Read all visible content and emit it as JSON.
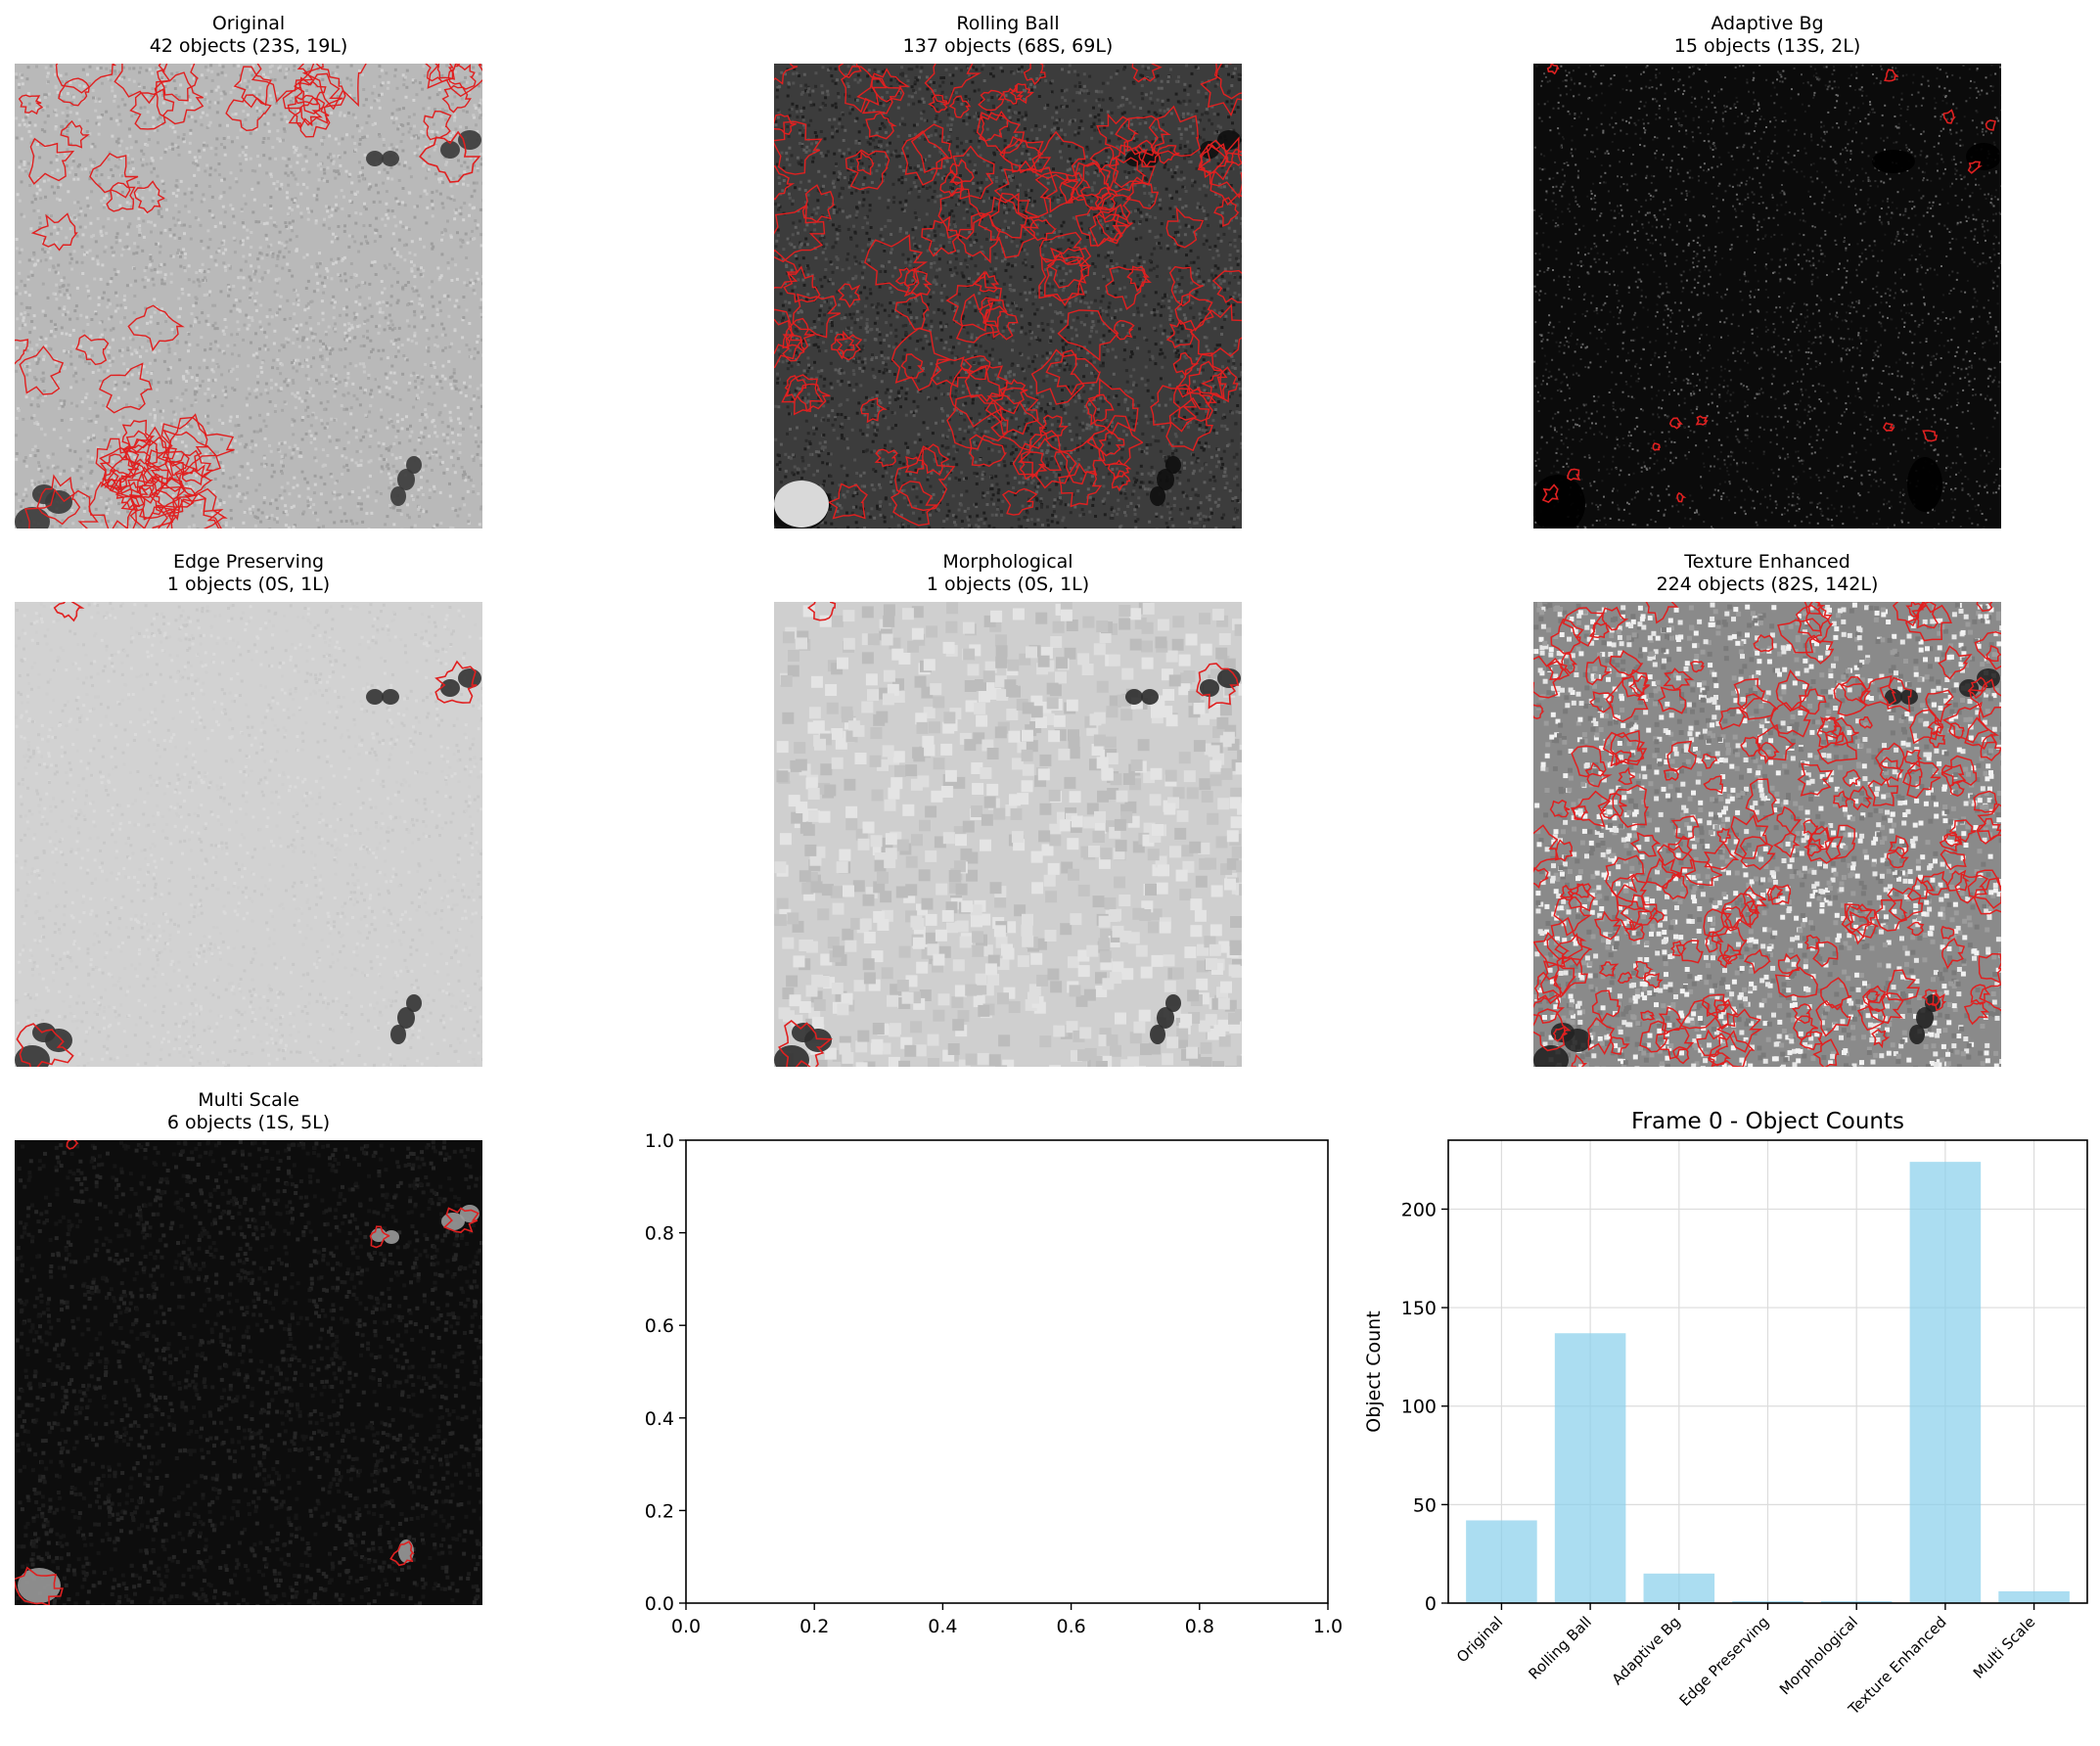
{
  "panels": [
    {
      "title": "Original",
      "subtitle": "42 objects (23S, 19L)",
      "bg": "light"
    },
    {
      "title": "Rolling Ball",
      "subtitle": "137 objects (68S, 69L)",
      "bg": "dark"
    },
    {
      "title": "Adaptive Bg",
      "subtitle": "15 objects (13S, 2L)",
      "bg": "black"
    },
    {
      "title": "Edge Preserving",
      "subtitle": "1 objects (0S, 1L)",
      "bg": "light"
    },
    {
      "title": "Morphological",
      "subtitle": "1 objects (0S, 1L)",
      "bg": "light"
    },
    {
      "title": "Texture Enhanced",
      "subtitle": "224 objects (82S, 142L)",
      "bg": "gray"
    },
    {
      "title": "Multi Scale",
      "subtitle": "6 objects (1S, 5L)",
      "bg": "black"
    }
  ],
  "empty_axes": {
    "xticks": [
      "0.0",
      "0.2",
      "0.4",
      "0.6",
      "0.8",
      "1.0"
    ],
    "yticks": [
      "0.0",
      "0.2",
      "0.4",
      "0.6",
      "0.8",
      "1.0"
    ]
  },
  "chart_data": {
    "type": "bar",
    "title": "Frame 0 - Object Counts",
    "xlabel": "",
    "ylabel": "Object Count",
    "categories": [
      "Original",
      "Rolling Ball",
      "Adaptive Bg",
      "Edge Preserving",
      "Morphological",
      "Texture Enhanced",
      "Multi Scale"
    ],
    "values": [
      42,
      137,
      15,
      1,
      1,
      224,
      6
    ],
    "yticks": [
      0,
      50,
      100,
      150,
      200
    ],
    "ylim": [
      0,
      235
    ],
    "grid": true,
    "bar_color": "#87ceeb"
  },
  "colors": {
    "contour": "#e02020"
  }
}
